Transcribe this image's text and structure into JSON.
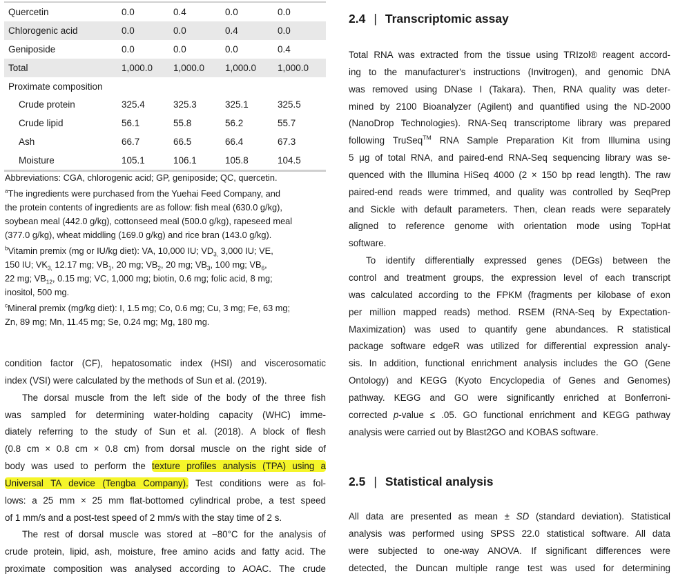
{
  "table": {
    "rows": [
      {
        "label": "Quercetin",
        "values": [
          "0.0",
          "0.4",
          "0.0",
          "0.0"
        ],
        "shade": false
      },
      {
        "label": "Chlorogenic acid",
        "values": [
          "0.0",
          "0.0",
          "0.4",
          "0.0"
        ],
        "shade": true
      },
      {
        "label": "Geniposide",
        "values": [
          "0.0",
          "0.0",
          "0.0",
          "0.4"
        ],
        "shade": false
      },
      {
        "label": "Total",
        "values": [
          "1,000.0",
          "1,000.0",
          "1,000.0",
          "1,000.0"
        ],
        "shade": true
      },
      {
        "label": "Proximate composition",
        "values": [],
        "shade": false
      },
      {
        "label": "Crude protein",
        "values": [
          "325.4",
          "325.3",
          "325.1",
          "325.5"
        ],
        "shade": false,
        "indent": true
      },
      {
        "label": "Crude lipid",
        "values": [
          "56.1",
          "55.8",
          "56.2",
          "55.7"
        ],
        "shade": false,
        "indent": true
      },
      {
        "label": "Ash",
        "values": [
          "66.7",
          "66.5",
          "66.4",
          "67.3"
        ],
        "shade": false,
        "indent": true
      },
      {
        "label": "Moisture",
        "values": [
          "105.1",
          "106.1",
          "105.8",
          "104.5"
        ],
        "shade": false,
        "indent": true
      }
    ]
  },
  "footnotes": [
    [
      [
        "Abbreviations: CGA, chlorogenic acid; GP, geniposide; QC, quercetin."
      ]
    ],
    [
      [
        {
          "sup": "a"
        },
        "The ingredients were purchased from the Yuehai Feed Company, and"
      ],
      [
        "the protein contents of ingredients are as follow: fish meal (630.0 g/kg),"
      ],
      [
        "soybean meal (442.0 g/kg), cottonseed meal (500.0 g/kg), rapeseed meal"
      ],
      [
        "(377.0 g/kg), wheat middling (169.0 g/kg) and rice bran (143.0 g/kg)."
      ]
    ],
    [
      [
        {
          "sup": "b"
        },
        "Vitamin premix (mg or IU/kg diet): VA, 10,000 IU; VD",
        {
          "sub": "3,"
        },
        " 3,000 IU; VE,"
      ],
      [
        "150 IU; VK",
        {
          "sub": "3,"
        },
        " 12.17 mg; VB",
        {
          "sub": "1"
        },
        ", 20 mg; VB",
        {
          "sub": "2"
        },
        ", 20 mg; VB",
        {
          "sub": "3"
        },
        ", 100 mg; VB",
        {
          "sub": "6"
        },
        ","
      ],
      [
        "22 mg; VB",
        {
          "sub": "12"
        },
        ", 0.15 mg; VC, 1,000 mg; biotin, 0.6 mg; folic acid, 8 mg;"
      ],
      [
        "inositol, 500 mg."
      ]
    ],
    [
      [
        {
          "sup": "c"
        },
        "Mineral premix (mg/kg diet): I, 1.5 mg; Co, 0.6 mg; Cu, 3 mg; Fe, 63 mg;"
      ],
      [
        "Zn, 89 mg; Mn, 11.45 mg; Se, 0.24 mg; Mg, 180 mg."
      ]
    ]
  ],
  "left_body": [
    {
      "t": [
        "condition factor (CF), hepatosomatic index (HSI) and viscerosomatic"
      ]
    },
    {
      "t": [
        "index (VSI) were calculated by the methods of Sun et al. (2019)."
      ],
      "end": true
    },
    {
      "t": [
        "The dorsal muscle from the left side of the body of the three fish"
      ],
      "indent": true
    },
    {
      "t": [
        "was sampled for determining water-holding capacity (WHC) imme-"
      ]
    },
    {
      "t": [
        "diately referring to the study of Sun et al. (2018). A block of flesh"
      ]
    },
    {
      "t": [
        "(0.8 cm × 0.8 cm × 0.8 cm) from dorsal muscle on the right side of"
      ]
    },
    {
      "t": [
        "body was used to perform the ",
        {
          "hl": "texture profiles analysis (TPA) using a"
        }
      ]
    },
    {
      "t": [
        {
          "hl": "Universal TA device (Tengba Company)."
        },
        " Test conditions were as fol-"
      ]
    },
    {
      "t": [
        "lows: a 25 mm × 25 mm flat-bottomed cylindrical probe, a test speed"
      ]
    },
    {
      "t": [
        "of 1 mm/s and a post-test speed of 2 mm/s with the stay time of 2 s."
      ],
      "end": true
    },
    {
      "t": [
        "The rest of dorsal muscle was stored at −80°C for the analysis of"
      ],
      "indent": true
    },
    {
      "t": [
        "crude protein, lipid, ash, moisture, free amino acids and fatty acid. The"
      ]
    },
    {
      "t": [
        "proximate composition was analysed according to AOAC. The crude"
      ]
    }
  ],
  "section_24": {
    "number": "2.4",
    "separator": "|",
    "title": "Transcriptomic assay",
    "lines": [
      {
        "t": [
          "Total RNA was extracted from the tissue using TRIzol® reagent accord-"
        ]
      },
      {
        "t": [
          "ing to the manufacturer's instructions (Invitrogen), and genomic DNA"
        ]
      },
      {
        "t": [
          "was removed using DNase I (Takara). Then, RNA quality was deter-"
        ]
      },
      {
        "t": [
          "mined by 2100 Bioanalyzer (Agilent) and quantified using the ND-2000"
        ]
      },
      {
        "t": [
          "(NanoDrop Technologies). RNA-Seq transcriptome library was prepared"
        ]
      },
      {
        "t": [
          "following TruSeq",
          {
            "sup": "TM"
          },
          " RNA Sample Preparation Kit from Illumina using"
        ]
      },
      {
        "t": [
          "5 μg of total RNA, and paired-end RNA-Seq sequencing library was se-"
        ]
      },
      {
        "t": [
          "quenced with the Illumina HiSeq 4000 (2 × 150 bp read length). The raw"
        ]
      },
      {
        "t": [
          "paired-end reads were trimmed, and quality was controlled by SeqPrep"
        ]
      },
      {
        "t": [
          "and Sickle with default parameters. Then, clean reads were separately"
        ]
      },
      {
        "t": [
          "aligned to reference genome with orientation mode using TopHat"
        ]
      },
      {
        "t": [
          "software."
        ],
        "end": true
      },
      {
        "t": [
          "To identify differentially expressed genes (DEGs) between the"
        ],
        "indent": true
      },
      {
        "t": [
          "control and treatment groups, the expression level of each transcript"
        ]
      },
      {
        "t": [
          "was calculated according to the FPKM (fragments per kilobase of exon"
        ]
      },
      {
        "t": [
          "per million mapped reads) method. RSEM (RNA-Seq by Expectation-"
        ]
      },
      {
        "t": [
          "Maximization) was used to quantify gene abundances. R statistical"
        ]
      },
      {
        "t": [
          "package software edgeR was utilized for differential expression analy-"
        ]
      },
      {
        "t": [
          "sis. In addition, functional enrichment analysis includes the GO (Gene"
        ]
      },
      {
        "t": [
          "Ontology) and KEGG (Kyoto Encyclopedia of Genes and Genomes)"
        ]
      },
      {
        "t": [
          "pathway. KEGG and GO were significantly enriched at Bonferroni-"
        ]
      },
      {
        "t": [
          "corrected ",
          {
            "em": "p"
          },
          "-value ≤ .05. GO functional enrichment and KEGG pathway"
        ]
      },
      {
        "t": [
          "analysis were carried out by Blast2GO and KOBAS software."
        ],
        "end": true
      }
    ]
  },
  "section_25": {
    "number": "2.5",
    "separator": "|",
    "title": "Statistical analysis",
    "lines": [
      {
        "t": [
          "All data are presented as mean ± ",
          {
            "em": "SD"
          },
          " (standard deviation). Statistical"
        ]
      },
      {
        "t": [
          "analysis was performed using SPSS 22.0 statistical software. All data"
        ]
      },
      {
        "t": [
          "were subjected to one-way ANOVA. If significant differences were"
        ]
      },
      {
        "t": [
          "detected, the Duncan multiple range test was used for determining"
        ]
      }
    ]
  },
  "colors": {
    "highlight": "#f5f52a",
    "table_shade": "#e8e8e8"
  }
}
